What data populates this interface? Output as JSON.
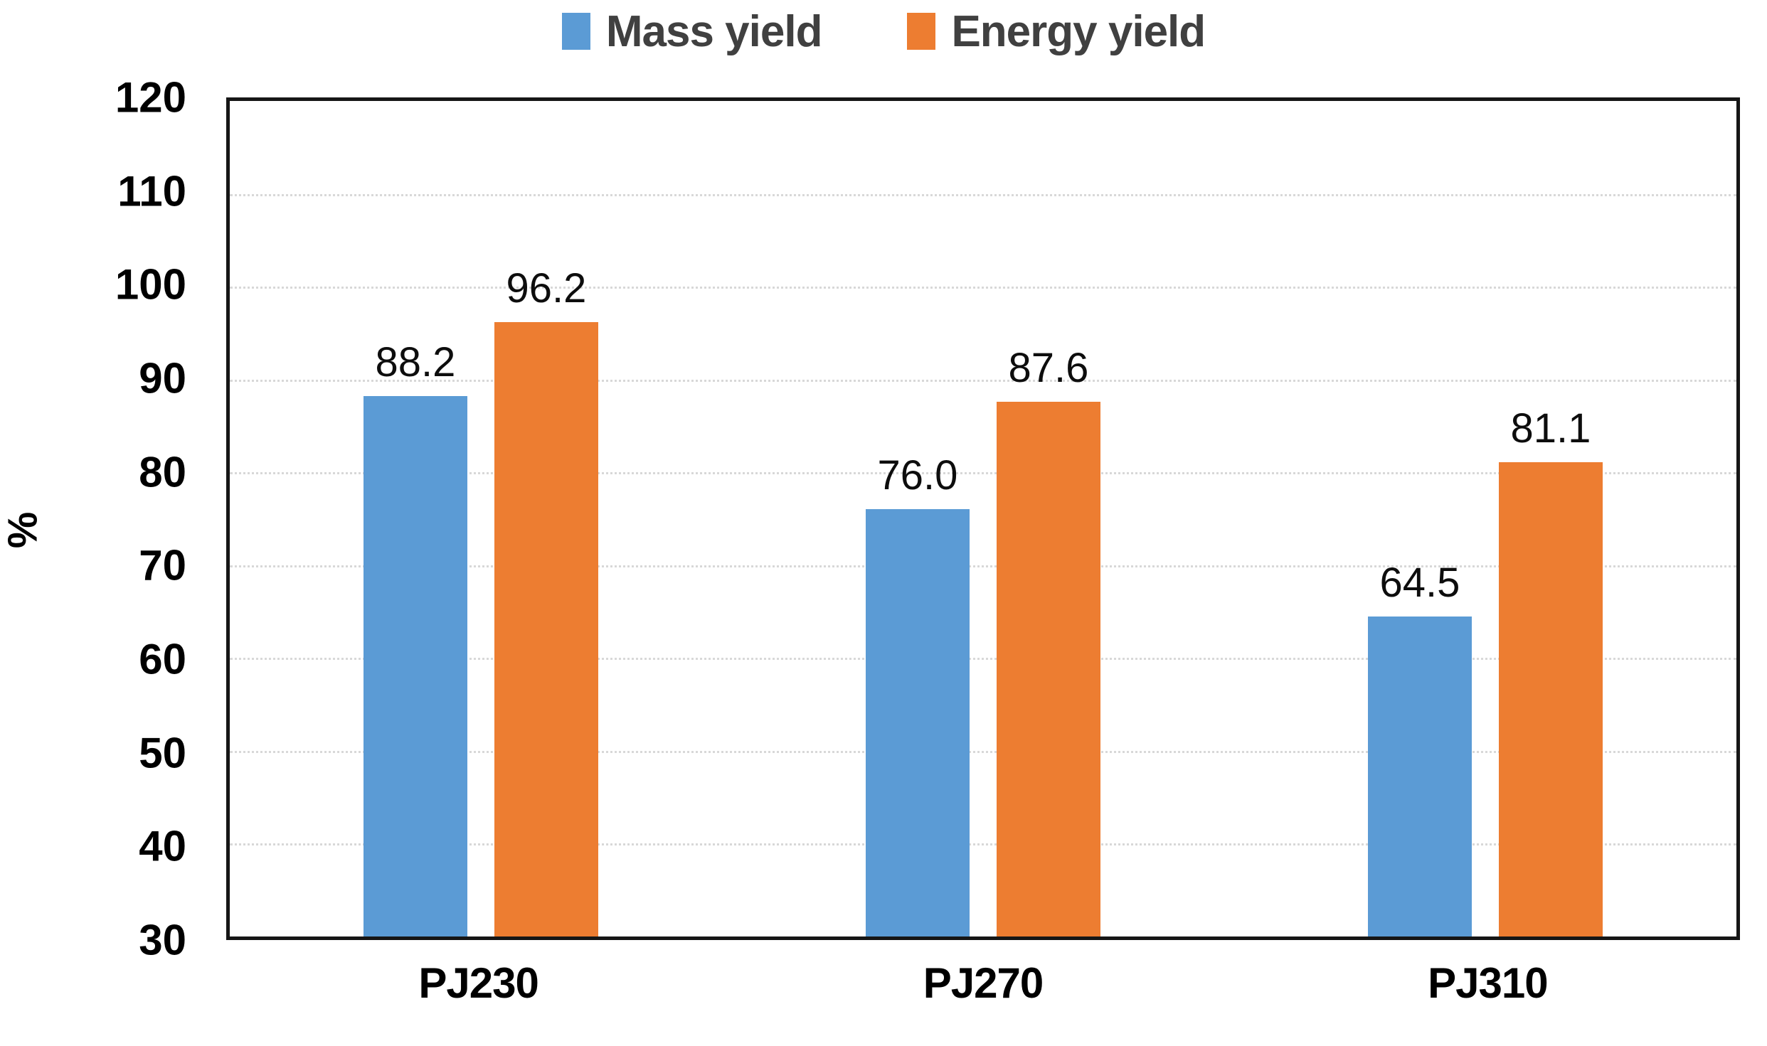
{
  "chart_data": {
    "type": "bar",
    "title": "",
    "xlabel": "",
    "ylabel": "%",
    "categories": [
      "PJ230",
      "PJ270",
      "PJ310"
    ],
    "series": [
      {
        "name": "Mass yield",
        "color": "#5B9BD5",
        "values": [
          88.2,
          76.0,
          64.5
        ],
        "labels": [
          "88.2",
          "76.0",
          "64.5"
        ]
      },
      {
        "name": "Energy yield",
        "color": "#ED7D31",
        "values": [
          96.2,
          87.6,
          81.1
        ],
        "labels": [
          "96.2",
          "87.6",
          "81.1"
        ]
      }
    ],
    "ylim": [
      30,
      120
    ],
    "ytick_step": 10,
    "y_ticks": [
      120,
      110,
      100,
      90,
      80,
      70,
      60,
      50,
      40,
      30
    ],
    "grid": "horizontal-dotted",
    "legend_position": "top-center"
  },
  "colors": {
    "series_blue": "#5B9BD5",
    "series_orange": "#ED7D31",
    "legend_text": "#404040",
    "axis_text": "#000000",
    "data_label_text": "#0d0d0d",
    "gridline": "#d8d8d8",
    "plot_border": "#161616",
    "background": "#ffffff"
  }
}
